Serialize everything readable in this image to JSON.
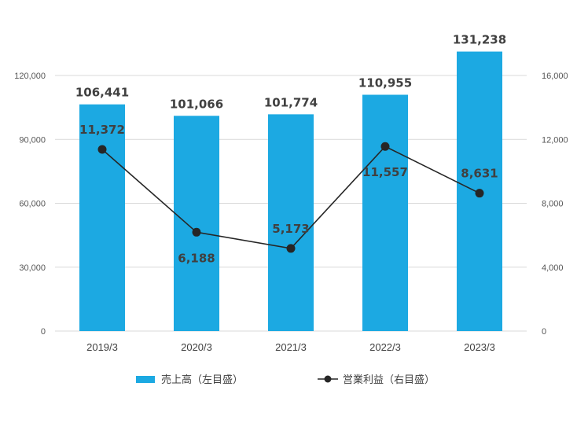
{
  "chart_data": {
    "type": "bar+line",
    "categories": [
      "2019/3",
      "2020/3",
      "2021/3",
      "2022/3",
      "2023/3"
    ],
    "series": [
      {
        "name": "売上高（左目盛）",
        "type": "bar",
        "axis": "left",
        "values": [
          106441,
          101066,
          101774,
          110955,
          131238
        ],
        "labels": [
          "106,441",
          "101,066",
          "101,774",
          "110,955",
          "131,238"
        ]
      },
      {
        "name": "営業利益（右目盛）",
        "type": "line",
        "axis": "right",
        "values": [
          11372,
          6188,
          5173,
          11557,
          8631
        ],
        "labels": [
          "11,372",
          "6,188",
          "5,173",
          "11,557",
          "8,631"
        ]
      }
    ],
    "left_axis": {
      "ylim": [
        0,
        120000
      ],
      "ticks": [
        "0",
        "30,000",
        "60,000",
        "90,000",
        "120,000"
      ]
    },
    "right_axis": {
      "ylim": [
        0,
        16000
      ],
      "ticks": [
        "0",
        "4,000",
        "8,000",
        "12,000",
        "16,000"
      ]
    },
    "grid": true,
    "legend_position": "bottom",
    "colors": {
      "bar": "#1CA9E2",
      "line": "#262626",
      "grid": "#D9D9D9"
    }
  }
}
